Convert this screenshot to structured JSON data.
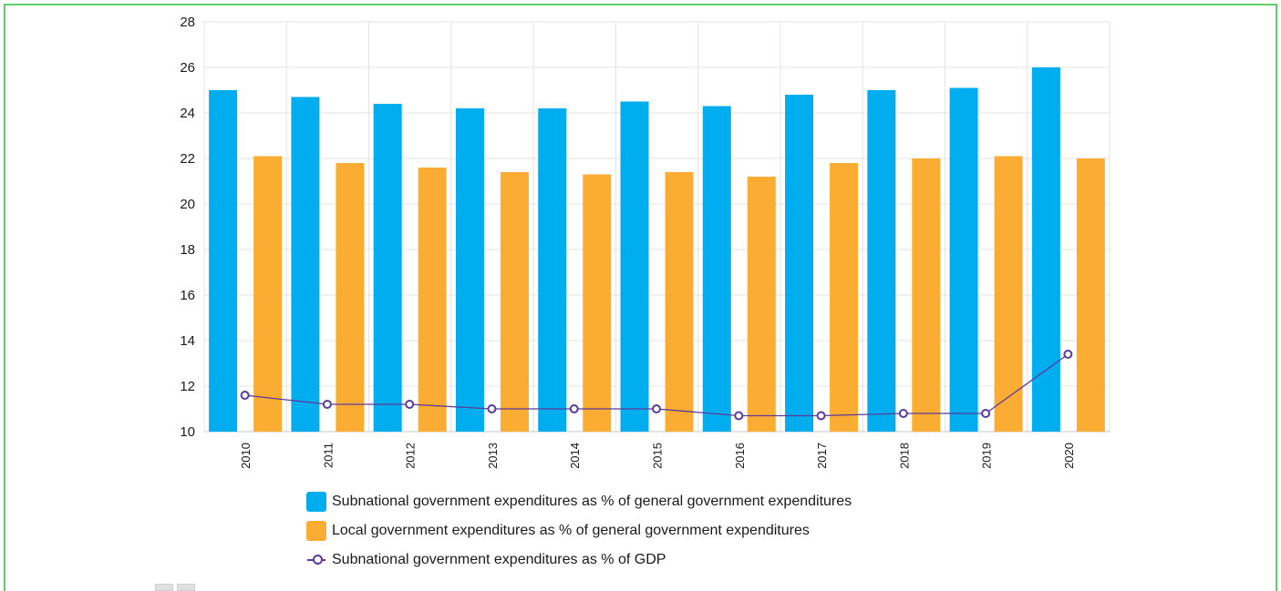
{
  "chart_data": {
    "type": "bar",
    "categories": [
      "2010",
      "2011",
      "2012",
      "2013",
      "2014",
      "2015",
      "2016",
      "2017",
      "2018",
      "2019",
      "2020"
    ],
    "series": [
      {
        "name": "Subnational government expenditures as % of general government expenditures",
        "kind": "bar",
        "color": "#00aeef",
        "values": [
          25.0,
          24.7,
          24.4,
          24.2,
          24.2,
          24.5,
          24.3,
          24.8,
          25.0,
          25.1,
          26.0
        ]
      },
      {
        "name": "Local government expenditures as % of general government expenditures",
        "kind": "bar",
        "color": "#fbac32",
        "values": [
          22.1,
          21.8,
          21.6,
          21.4,
          21.3,
          21.4,
          21.2,
          21.8,
          22.0,
          22.1,
          22.0
        ]
      },
      {
        "name": "Subnational government expenditures as % of GDP",
        "kind": "line",
        "color": "#5b3a9c",
        "values": [
          11.6,
          11.2,
          11.2,
          11.0,
          11.0,
          11.0,
          10.7,
          10.7,
          10.8,
          10.8,
          13.4
        ]
      }
    ],
    "ylim": [
      10,
      28
    ],
    "yticks": [
      "10",
      "12",
      "14",
      "16",
      "18",
      "20",
      "22",
      "24",
      "26",
      "28"
    ],
    "grid": true,
    "legend_position": "bottom",
    "title": "",
    "xlabel": "",
    "ylabel": ""
  }
}
